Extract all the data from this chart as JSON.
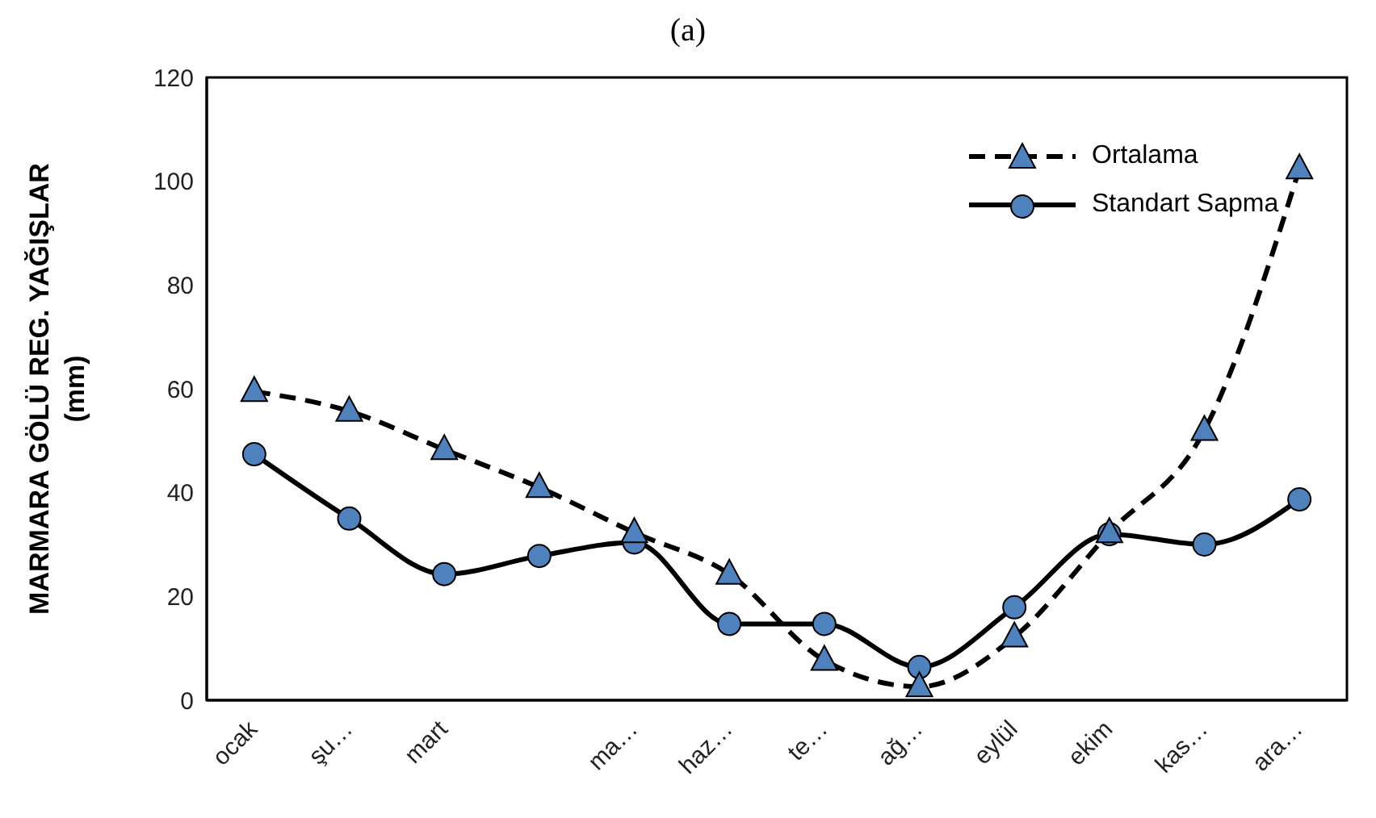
{
  "chart_data": {
    "type": "line",
    "title": "(a)",
    "ylabel": "MARMARA GÖLÜ REG. YAĞIŞLAR (mm)",
    "categories": [
      "ocak",
      "şu…",
      "mart",
      null,
      "ma…",
      "haz…",
      "te…",
      "ağ…",
      "eylül",
      "ekim",
      "kas…",
      "ara…"
    ],
    "series": [
      {
        "name": "Ortalama",
        "color": "#4f81bd",
        "marker": "triangle",
        "line_style": "dashed",
        "values": [
          59.5,
          55.7,
          48.3,
          41,
          32.3,
          24.3,
          7.7,
          2.6,
          12.2,
          32.3,
          52,
          102.4
        ]
      },
      {
        "name": "Standart Sapma",
        "color": "#4f81bd",
        "marker": "circle",
        "line_style": "solid",
        "values": [
          47.4,
          35,
          24.3,
          27.8,
          30.4,
          14.7,
          14.7,
          6.4,
          17.9,
          32,
          30,
          38.7
        ]
      }
    ],
    "ylim": [
      0,
      120
    ],
    "yticks": [
      0,
      20,
      40,
      60,
      80,
      100,
      120
    ],
    "grid": false,
    "legend": "top right"
  }
}
